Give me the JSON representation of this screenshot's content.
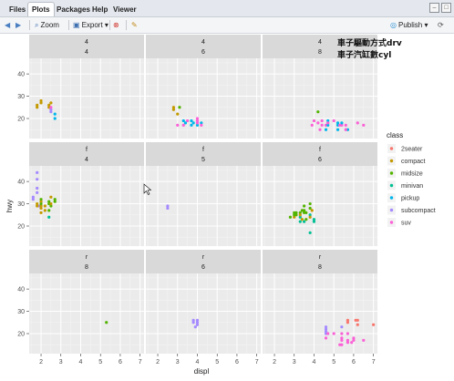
{
  "tabs": [
    {
      "label": "Files"
    },
    {
      "label": "Plots"
    },
    {
      "label": "Packages"
    },
    {
      "label": "Help"
    },
    {
      "label": "Viewer"
    }
  ],
  "toolbar": {
    "zoom_label": "Zoom",
    "export_label": "Export ▾",
    "publish_label": "Publish ▾"
  },
  "overlay": {
    "line1": "車子驅動方式drv",
    "line2": "車子汽缸數cyl"
  },
  "chart_data": {
    "type": "scatter",
    "xlabel": "displ",
    "ylabel": "hwy",
    "xlim": [
      1.4,
      7.2
    ],
    "ylim": [
      11,
      47
    ],
    "xticks": [
      2,
      3,
      4,
      5,
      6,
      7
    ],
    "yticks": [
      20,
      30,
      40
    ],
    "facet_rows": [
      "4",
      "f",
      "r"
    ],
    "facet_cols_by_row": [
      [
        "4",
        "6",
        "8"
      ],
      [
        "4",
        "5",
        "6"
      ],
      [
        "8",
        "6",
        "8"
      ]
    ],
    "legend": {
      "title": "class",
      "placement": "right",
      "items": [
        {
          "name": "2seater",
          "color": "#F8766D"
        },
        {
          "name": "compact",
          "color": "#C49A00"
        },
        {
          "name": "midsize",
          "color": "#53B400"
        },
        {
          "name": "minivan",
          "color": "#00C094"
        },
        {
          "name": "pickup",
          "color": "#00B6EB"
        },
        {
          "name": "subcompact",
          "color": "#A58AFF"
        },
        {
          "name": "suv",
          "color": "#FB61D7"
        }
      ]
    },
    "panels": [
      {
        "row": 0,
        "col": 0,
        "points": [
          [
            1.8,
            26,
            "compact"
          ],
          [
            1.8,
            25,
            "compact"
          ],
          [
            2.0,
            28,
            "compact"
          ],
          [
            2.0,
            27,
            "compact"
          ],
          [
            2.4,
            26,
            "compact"
          ],
          [
            2.4,
            25,
            "compact"
          ],
          [
            2.5,
            23,
            "subcompact"
          ],
          [
            2.5,
            24,
            "subcompact"
          ],
          [
            2.7,
            22,
            "pickup"
          ],
          [
            2.7,
            20,
            "pickup"
          ],
          [
            2.5,
            27,
            "compact"
          ],
          [
            2.5,
            25,
            "suv"
          ]
        ]
      },
      {
        "row": 0,
        "col": 1,
        "points": [
          [
            2.8,
            25,
            "compact"
          ],
          [
            2.8,
            24,
            "compact"
          ],
          [
            3.1,
            25,
            "midsize"
          ],
          [
            3.0,
            22,
            "compact"
          ],
          [
            3.3,
            19,
            "pickup"
          ],
          [
            3.3,
            17,
            "suv"
          ],
          [
            3.5,
            19,
            "suv"
          ],
          [
            3.7,
            19,
            "pickup"
          ],
          [
            3.7,
            17,
            "pickup"
          ],
          [
            3.8,
            18,
            "pickup"
          ],
          [
            4.0,
            20,
            "suv"
          ],
          [
            4.0,
            17,
            "pickup"
          ],
          [
            4.0,
            19,
            "suv"
          ],
          [
            4.2,
            18,
            "pickup"
          ],
          [
            4.2,
            17,
            "suv"
          ],
          [
            3.0,
            17,
            "suv"
          ],
          [
            4.0,
            18,
            "suv"
          ],
          [
            3.4,
            18,
            "pickup"
          ]
        ]
      },
      {
        "row": 0,
        "col": 2,
        "points": [
          [
            4.2,
            23,
            "midsize"
          ],
          [
            3.9,
            17,
            "suv"
          ],
          [
            4.0,
            19,
            "suv"
          ],
          [
            4.2,
            18,
            "suv"
          ],
          [
            4.4,
            17,
            "suv"
          ],
          [
            4.4,
            19,
            "suv"
          ],
          [
            4.6,
            17,
            "suv"
          ],
          [
            4.6,
            15,
            "pickup"
          ],
          [
            4.7,
            17,
            "pickup"
          ],
          [
            4.7,
            19,
            "pickup"
          ],
          [
            4.7,
            18,
            "suv"
          ],
          [
            5.2,
            17,
            "pickup"
          ],
          [
            5.2,
            15,
            "pickup"
          ],
          [
            5.4,
            17,
            "suv"
          ],
          [
            5.4,
            18,
            "pickup"
          ],
          [
            5.7,
            15,
            "pickup"
          ],
          [
            5.3,
            17,
            "suv"
          ],
          [
            6.2,
            18,
            "suv"
          ],
          [
            6.5,
            17,
            "suv"
          ],
          [
            4.3,
            15,
            "suv"
          ],
          [
            5.6,
            15,
            "suv"
          ],
          [
            5.6,
            17,
            "suv"
          ],
          [
            5.0,
            19,
            "suv"
          ],
          [
            5.2,
            18,
            "pickup"
          ]
        ]
      },
      {
        "row": 1,
        "col": 0,
        "points": [
          [
            1.6,
            33,
            "subcompact"
          ],
          [
            1.6,
            32,
            "subcompact"
          ],
          [
            1.8,
            44,
            "subcompact"
          ],
          [
            1.8,
            41,
            "subcompact"
          ],
          [
            1.8,
            37,
            "subcompact"
          ],
          [
            1.9,
            29,
            "subcompact"
          ],
          [
            2.0,
            29,
            "compact"
          ],
          [
            2.0,
            31,
            "compact"
          ],
          [
            2.0,
            30,
            "midsize"
          ],
          [
            2.0,
            28,
            "compact"
          ],
          [
            2.2,
            29,
            "compact"
          ],
          [
            2.2,
            27,
            "compact"
          ],
          [
            2.4,
            30,
            "midsize"
          ],
          [
            2.4,
            31,
            "midsize"
          ],
          [
            2.4,
            27,
            "midsize"
          ],
          [
            2.5,
            29,
            "midsize"
          ],
          [
            2.5,
            33,
            "compact"
          ],
          [
            2.7,
            32,
            "midsize"
          ],
          [
            2.7,
            31,
            "midsize"
          ],
          [
            2.5,
            30,
            "compact"
          ],
          [
            1.8,
            30,
            "compact"
          ],
          [
            1.8,
            35,
            "subcompact"
          ],
          [
            2.4,
            24,
            "minivan"
          ],
          [
            1.8,
            29,
            "compact"
          ],
          [
            2.0,
            26,
            "compact"
          ],
          [
            2.0,
            32,
            "midsize"
          ]
        ]
      },
      {
        "row": 1,
        "col": 1,
        "points": [
          [
            2.5,
            29,
            "subcompact"
          ],
          [
            2.5,
            28,
            "subcompact"
          ]
        ]
      },
      {
        "row": 1,
        "col": 2,
        "points": [
          [
            2.8,
            24,
            "midsize"
          ],
          [
            3.0,
            26,
            "midsize"
          ],
          [
            3.1,
            26,
            "midsize"
          ],
          [
            3.1,
            25,
            "midsize"
          ],
          [
            3.3,
            26,
            "midsize"
          ],
          [
            3.3,
            24,
            "minivan"
          ],
          [
            3.3,
            22,
            "minivan"
          ],
          [
            3.4,
            27,
            "midsize"
          ],
          [
            3.5,
            27,
            "midsize"
          ],
          [
            3.5,
            29,
            "midsize"
          ],
          [
            3.5,
            26,
            "midsize"
          ],
          [
            3.6,
            26,
            "midsize"
          ],
          [
            3.8,
            28,
            "midsize"
          ],
          [
            3.8,
            25,
            "minivan"
          ],
          [
            3.8,
            24,
            "compact"
          ],
          [
            3.9,
            27,
            "compact"
          ],
          [
            4.0,
            22,
            "minivan"
          ],
          [
            4.0,
            23,
            "minivan"
          ],
          [
            3.8,
            17,
            "minivan"
          ],
          [
            3.3,
            25,
            "compact"
          ],
          [
            3.0,
            24,
            "compact"
          ],
          [
            3.8,
            30,
            "midsize"
          ],
          [
            3.5,
            22,
            "minivan"
          ],
          [
            3.6,
            23,
            "midsize"
          ],
          [
            3.0,
            25,
            "midsize"
          ],
          [
            3.4,
            23,
            "compact"
          ]
        ]
      },
      {
        "row": 2,
        "col": 0,
        "points": [
          [
            5.3,
            25,
            "midsize"
          ]
        ]
      },
      {
        "row": 2,
        "col": 1,
        "points": [
          [
            3.8,
            26,
            "subcompact"
          ],
          [
            3.8,
            25,
            "subcompact"
          ],
          [
            4.0,
            24,
            "subcompact"
          ],
          [
            4.0,
            26,
            "subcompact"
          ],
          [
            3.9,
            23,
            "subcompact"
          ],
          [
            4.0,
            25,
            "subcompact"
          ]
        ]
      },
      {
        "row": 2,
        "col": 2,
        "points": [
          [
            4.6,
            18,
            "suv"
          ],
          [
            4.6,
            22,
            "subcompact"
          ],
          [
            4.6,
            21,
            "subcompact"
          ],
          [
            4.6,
            20,
            "subcompact"
          ],
          [
            4.6,
            23,
            "subcompact"
          ],
          [
            5.4,
            17,
            "suv"
          ],
          [
            5.4,
            18,
            "suv"
          ],
          [
            5.4,
            15,
            "suv"
          ],
          [
            5.3,
            15,
            "suv"
          ],
          [
            5.7,
            17,
            "suv"
          ],
          [
            5.7,
            20,
            "suv"
          ],
          [
            5.7,
            16,
            "suv"
          ],
          [
            5.4,
            20,
            "suv"
          ],
          [
            5.0,
            20,
            "suv"
          ],
          [
            5.7,
            25,
            "2seater"
          ],
          [
            5.7,
            26,
            "2seater"
          ],
          [
            6.1,
            26,
            "2seater"
          ],
          [
            6.2,
            24,
            "2seater"
          ],
          [
            6.2,
            26,
            "2seater"
          ],
          [
            7.0,
            24,
            "2seater"
          ],
          [
            6.0,
            17,
            "suv"
          ],
          [
            6.0,
            18,
            "suv"
          ],
          [
            6.5,
            17,
            "suv"
          ],
          [
            5.4,
            23,
            "subcompact"
          ],
          [
            5.9,
            16,
            "suv"
          ],
          [
            4.7,
            20,
            "suv"
          ]
        ]
      }
    ]
  }
}
